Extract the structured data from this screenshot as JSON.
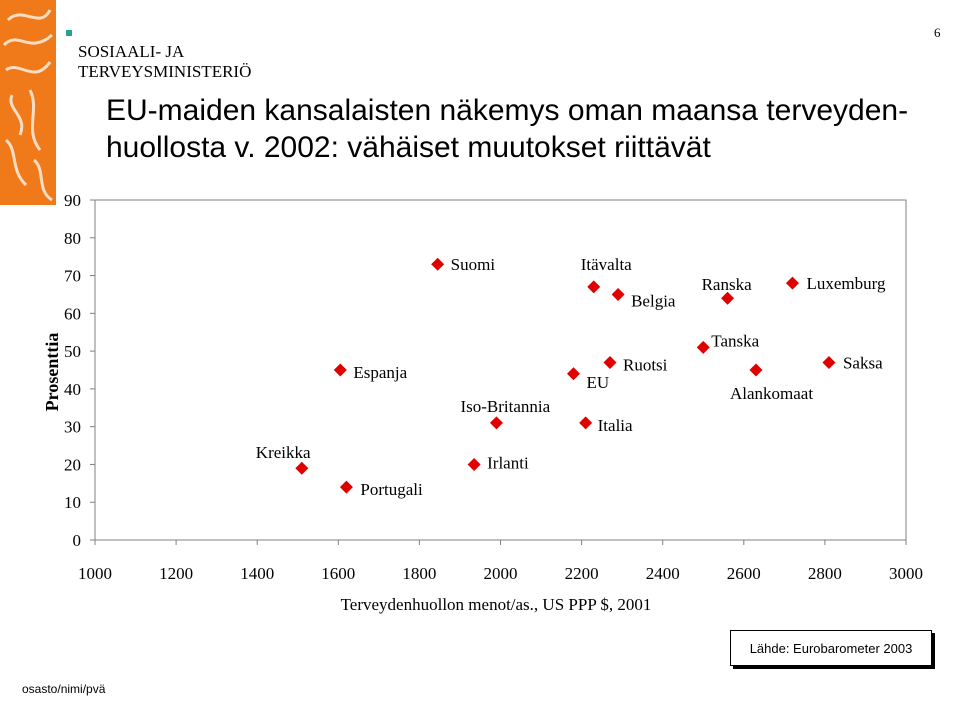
{
  "header": {
    "org_line1": "SOSIAALI- JA",
    "org_line2": "TERVEYSMINISTERIÖ",
    "page_number": "6",
    "title_line1": "EU-maiden kansalaisten näkemys oman maansa terveyden-",
    "title_line2": "huollosta v. 2002: vähäiset muutokset riittävät"
  },
  "colors": {
    "accent": "#f07a1a",
    "marker": "#e00000",
    "header_bullet": "#2aa090"
  },
  "chart_data": {
    "type": "scatter",
    "title": "",
    "xlabel": "Terveydenhuollon menot/as., US PPP $, 2001",
    "ylabel": "Prosenttia",
    "xlim": [
      1000,
      3000
    ],
    "ylim": [
      0,
      90
    ],
    "xticks": [
      1000,
      1200,
      1400,
      1600,
      1800,
      2000,
      2200,
      2400,
      2600,
      2800,
      3000
    ],
    "yticks": [
      0,
      10,
      20,
      30,
      40,
      50,
      60,
      70,
      80,
      90
    ],
    "grid": false,
    "points": [
      {
        "label": "Kreikka",
        "x": 1510,
        "y": 19
      },
      {
        "label": "Portugali",
        "x": 1620,
        "y": 14
      },
      {
        "label": "Espanja",
        "x": 1605,
        "y": 45
      },
      {
        "label": "Suomi",
        "x": 1845,
        "y": 73
      },
      {
        "label": "Irlanti",
        "x": 1935,
        "y": 20
      },
      {
        "label": "Iso-Britannia",
        "x": 1990,
        "y": 31
      },
      {
        "label": "EU",
        "x": 2180,
        "y": 44
      },
      {
        "label": "Italia",
        "x": 2210,
        "y": 31
      },
      {
        "label": "Itävalta",
        "x": 2230,
        "y": 67
      },
      {
        "label": "Ruotsi",
        "x": 2270,
        "y": 47
      },
      {
        "label": "Belgia",
        "x": 2290,
        "y": 65
      },
      {
        "label": "Tanska",
        "x": 2500,
        "y": 51
      },
      {
        "label": "Ranska",
        "x": 2560,
        "y": 64
      },
      {
        "label": "Alankomaat",
        "x": 2630,
        "y": 45
      },
      {
        "label": "Luxemburg",
        "x": 2720,
        "y": 68
      },
      {
        "label": "Saksa",
        "x": 2810,
        "y": 47
      }
    ]
  },
  "source": "Lähde: Eurobarometer 2003",
  "footer": "osasto/nimi/pvä"
}
